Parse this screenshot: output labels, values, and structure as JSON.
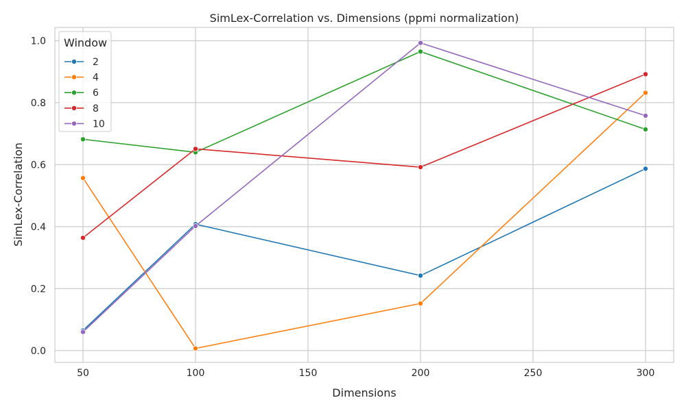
{
  "chart_data": {
    "type": "line",
    "title": "SimLex-Correlation vs. Dimensions (ppmi normalization)",
    "xlabel": "Dimensions",
    "ylabel": "SimLex-Correlation",
    "x": [
      50,
      100,
      200,
      300
    ],
    "xlim": [
      37.5,
      312.5
    ],
    "ylim": [
      -0.038,
      1.043
    ],
    "xticks": [
      50,
      100,
      150,
      200,
      250,
      300
    ],
    "yticks": [
      0.0,
      0.2,
      0.4,
      0.6,
      0.8,
      1.0
    ],
    "ytick_labels": [
      "0.0",
      "0.2",
      "0.4",
      "0.6",
      "0.8",
      "1.0"
    ],
    "grid": true,
    "legend": {
      "title": "Window",
      "placement": "top-left"
    },
    "series": [
      {
        "name": "2",
        "color": "#1f77b4",
        "values": [
          0.065,
          0.408,
          0.242,
          0.587
        ]
      },
      {
        "name": "4",
        "color": "#ff7f0e",
        "values": [
          0.557,
          0.007,
          0.152,
          0.832
        ]
      },
      {
        "name": "6",
        "color": "#2ca02c",
        "values": [
          0.682,
          0.64,
          0.965,
          0.714
        ]
      },
      {
        "name": "8",
        "color": "#d62728",
        "values": [
          0.364,
          0.651,
          0.592,
          0.892
        ]
      },
      {
        "name": "10",
        "color": "#9467bd",
        "values": [
          0.06,
          0.402,
          0.993,
          0.758
        ]
      }
    ]
  }
}
